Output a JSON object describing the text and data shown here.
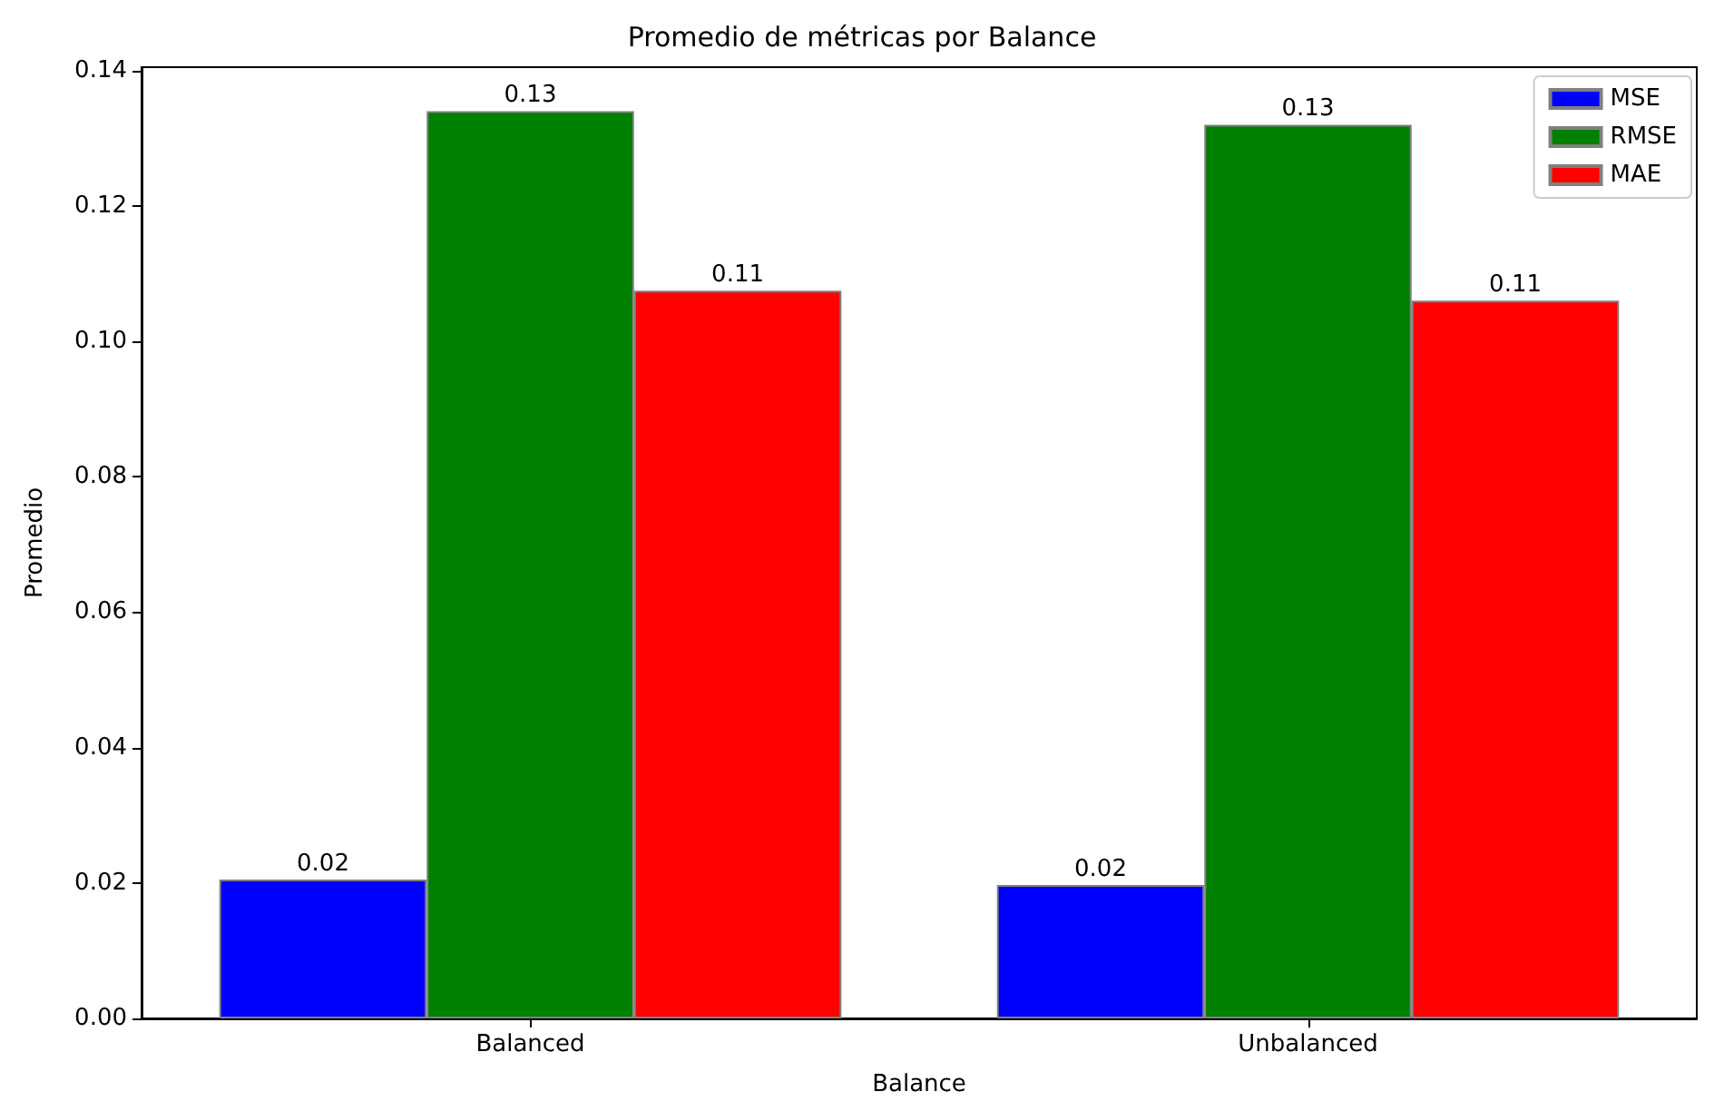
{
  "chart_data": {
    "type": "bar",
    "title": "Promedio de métricas por Balance",
    "xlabel": "Balance",
    "ylabel": "Promedio",
    "categories": [
      "Balanced",
      "Unbalanced"
    ],
    "series": [
      {
        "name": "MSE",
        "color": "#0000ff",
        "values": [
          0.0205,
          0.0197
        ],
        "value_labels": [
          "0.02",
          "0.02"
        ]
      },
      {
        "name": "RMSE",
        "color": "#008000",
        "values": [
          0.134,
          0.132
        ],
        "value_labels": [
          "0.13",
          "0.13"
        ]
      },
      {
        "name": "MAE",
        "color": "#ff0000",
        "values": [
          0.1075,
          0.106
        ],
        "value_labels": [
          "0.11",
          "0.11"
        ]
      }
    ],
    "ylim": [
      0,
      0.1405
    ],
    "yticks": [
      {
        "value": 0,
        "label": "0.00"
      },
      {
        "value": 0.02,
        "label": "0.02"
      },
      {
        "value": 0.04,
        "label": "0.04"
      },
      {
        "value": 0.06,
        "label": "0.06"
      },
      {
        "value": 0.08,
        "label": "0.08"
      },
      {
        "value": 0.1,
        "label": "0.10"
      },
      {
        "value": 0.12,
        "label": "0.12"
      },
      {
        "value": 0.14,
        "label": "0.14"
      }
    ],
    "grid": false,
    "legend": "top right"
  }
}
